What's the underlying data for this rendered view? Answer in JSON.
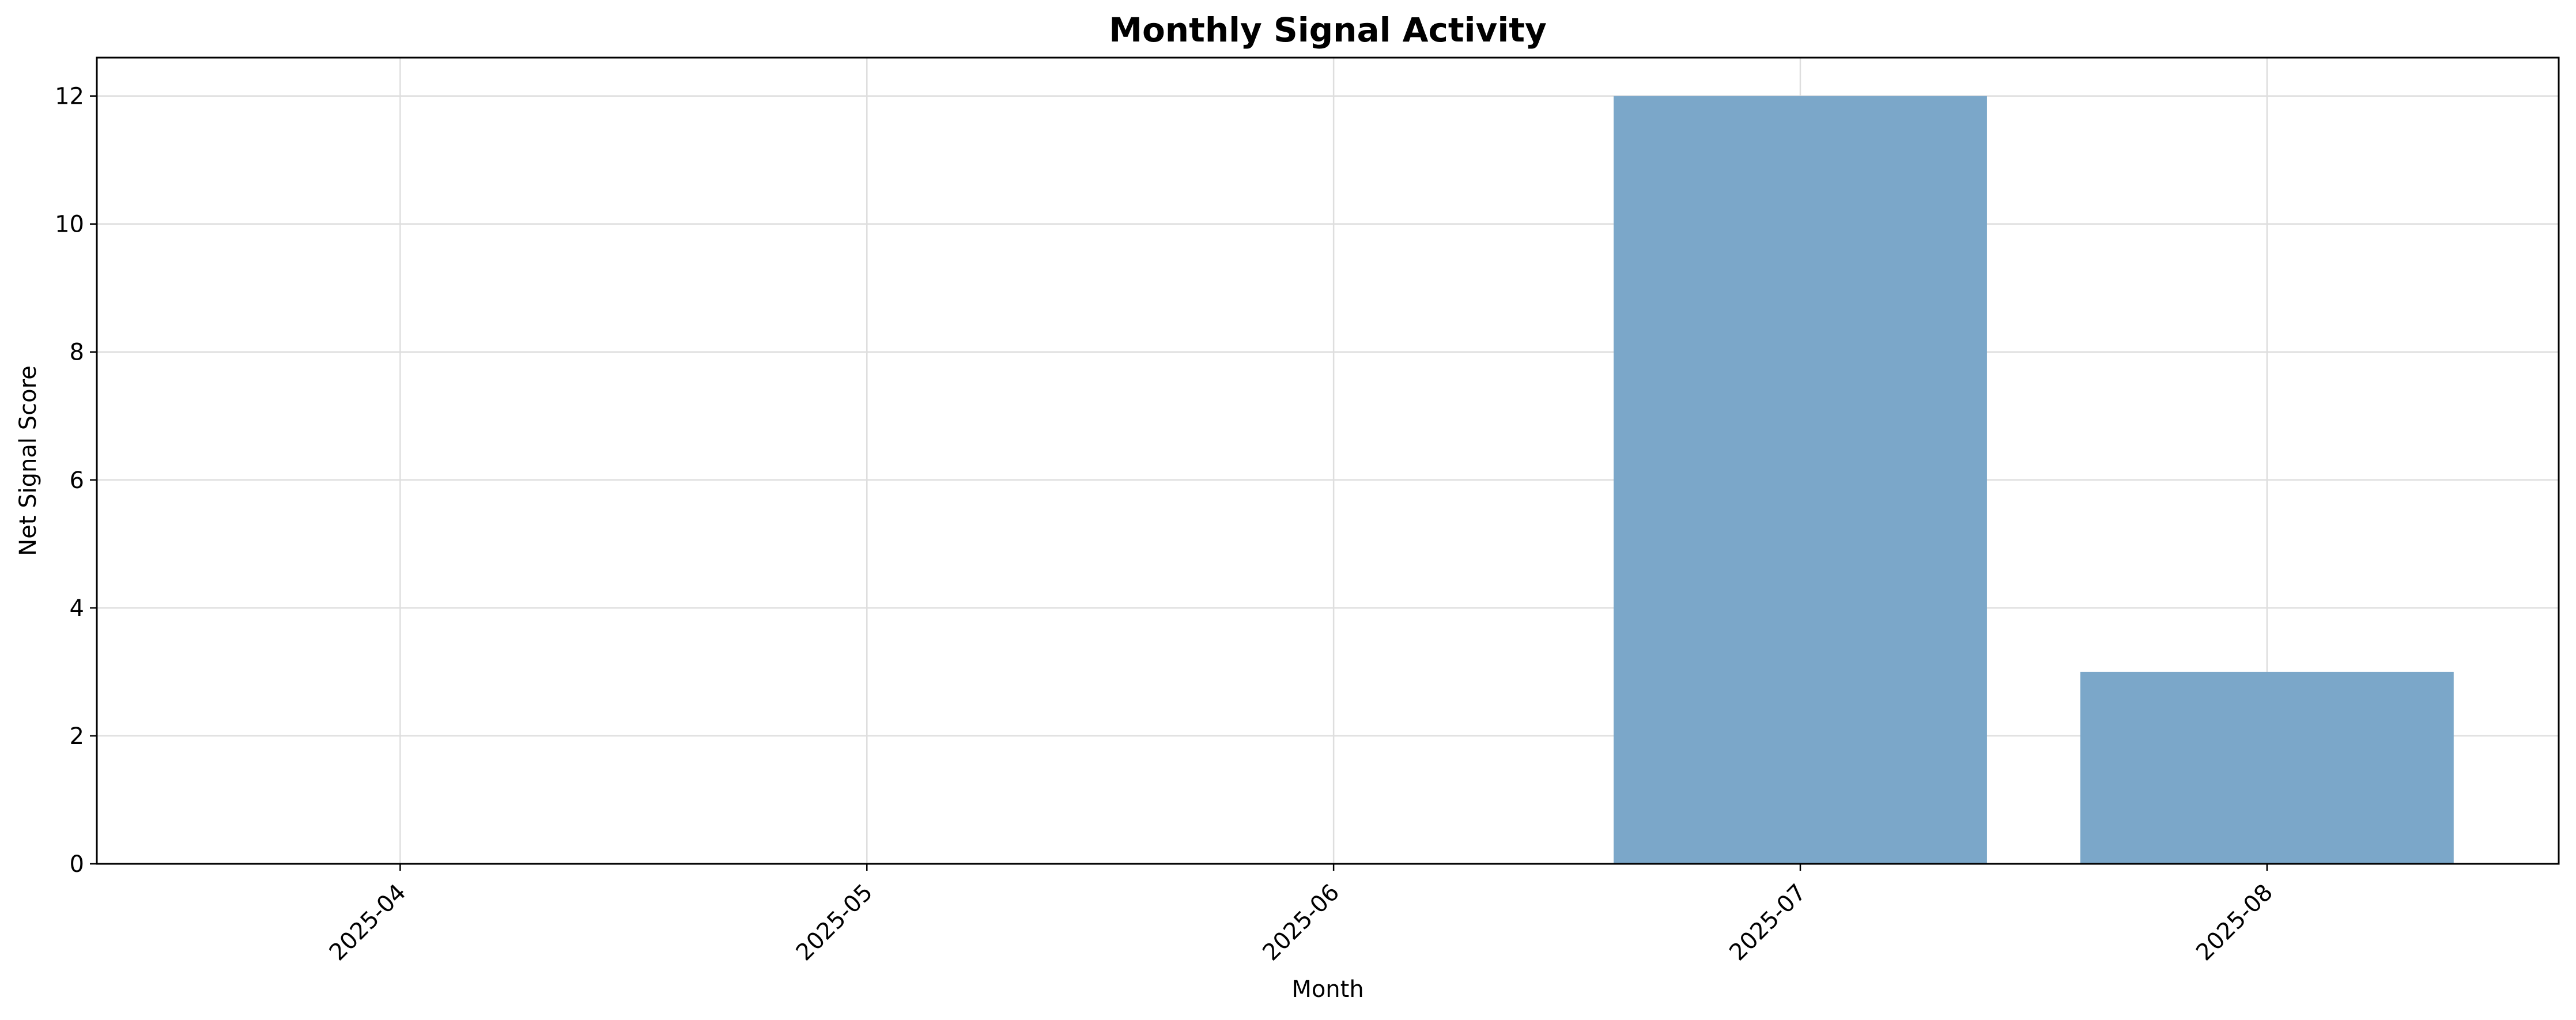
{
  "chart_data": {
    "type": "bar",
    "title": "Monthly Signal Activity",
    "xlabel": "Month",
    "ylabel": "Net Signal Score",
    "categories": [
      "2025-04",
      "2025-05",
      "2025-06",
      "2025-07",
      "2025-08"
    ],
    "values": [
      0,
      0,
      0,
      12,
      3
    ],
    "ylim": [
      0,
      12.6
    ],
    "yticks": [
      "0",
      "2",
      "4",
      "6",
      "8",
      "10",
      "12"
    ],
    "grid": true,
    "bar_color": "#7ba7c9",
    "legend": "none"
  }
}
